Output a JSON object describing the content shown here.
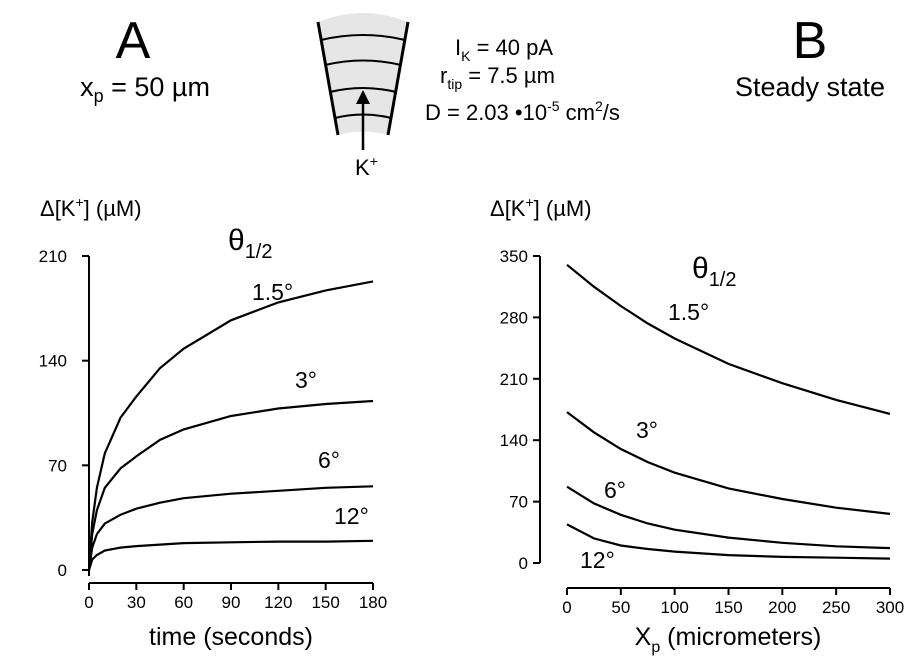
{
  "header": {
    "left": {
      "label": "A",
      "sub_main": "x",
      "sub_sub": "p",
      "sub_rest": " = 50 µm"
    },
    "right": {
      "label": "B",
      "subtitle": "Steady state"
    },
    "diagram": {
      "ion": "K",
      "ion_sup": "+",
      "line1": {
        "main": "I",
        "sub": "K",
        "rest": " = 40 pA"
      },
      "line2": {
        "main": "r",
        "sub": "tip",
        "rest": " = 7.5 µm"
      },
      "line3": {
        "main": "D = 2.03 •10",
        "sup": "-5",
        "mid": " cm",
        "sup2": "2",
        "rest": "/s"
      }
    }
  },
  "chart_data": [
    {
      "type": "line",
      "y_label": {
        "pre": "Δ[K",
        "sup": "+",
        "post": "] (µM)"
      },
      "x_label": "time (seconds)",
      "legend_title": {
        "main": "θ",
        "sub": "1/2"
      },
      "x": [
        0,
        2,
        5,
        10,
        20,
        30,
        45,
        60,
        90,
        120,
        150,
        180
      ],
      "series": [
        {
          "name": "1.5°",
          "color": "#000000",
          "values": [
            0,
            32,
            55,
            78,
            102,
            116,
            135,
            148,
            167,
            179,
            187,
            193
          ]
        },
        {
          "name": "3°",
          "color": "#000000",
          "values": [
            0,
            24,
            40,
            55,
            68,
            76,
            87,
            94,
            103,
            108,
            111,
            113
          ]
        },
        {
          "name": "6°",
          "color": "#000000",
          "values": [
            0,
            15,
            24,
            31,
            37,
            41,
            45,
            48,
            51,
            53,
            55,
            56
          ]
        },
        {
          "name": "12°",
          "color": "#000000",
          "values": [
            0,
            7,
            10,
            13,
            15,
            16,
            17,
            18,
            18.5,
            19,
            19,
            19.5
          ]
        }
      ],
      "xlim": [
        0,
        180
      ],
      "ylim": [
        0,
        210
      ],
      "xticks": [
        0,
        30,
        60,
        90,
        120,
        150,
        180
      ],
      "yticks": [
        0,
        70,
        140,
        210
      ]
    },
    {
      "type": "line",
      "y_label": {
        "pre": "Δ[K",
        "sup": "+",
        "post": "] (µM)"
      },
      "x_label": {
        "main": "X",
        "sub": "p",
        "rest": " (micrometers)"
      },
      "legend_title": {
        "main": "θ",
        "sub": "1/2"
      },
      "x": [
        0,
        25,
        50,
        75,
        100,
        150,
        200,
        250,
        300
      ],
      "series": [
        {
          "name": "1.5°",
          "color": "#000000",
          "values": [
            340,
            315,
            293,
            273,
            256,
            227,
            205,
            186,
            170
          ]
        },
        {
          "name": "3°",
          "color": "#000000",
          "values": [
            172,
            149,
            130,
            115,
            103,
            85,
            73,
            63,
            56
          ]
        },
        {
          "name": "6°",
          "color": "#000000",
          "values": [
            87,
            68,
            55,
            45,
            38,
            29,
            23,
            19,
            17
          ]
        },
        {
          "name": "12°",
          "color": "#000000",
          "values": [
            44,
            28,
            20,
            16,
            13,
            9,
            7,
            6,
            5
          ]
        }
      ],
      "xlim": [
        0,
        300
      ],
      "ylim": [
        0,
        350
      ],
      "xticks": [
        0,
        50,
        100,
        150,
        200,
        250,
        300
      ],
      "yticks": [
        0,
        70,
        140,
        210,
        280,
        350
      ]
    }
  ]
}
